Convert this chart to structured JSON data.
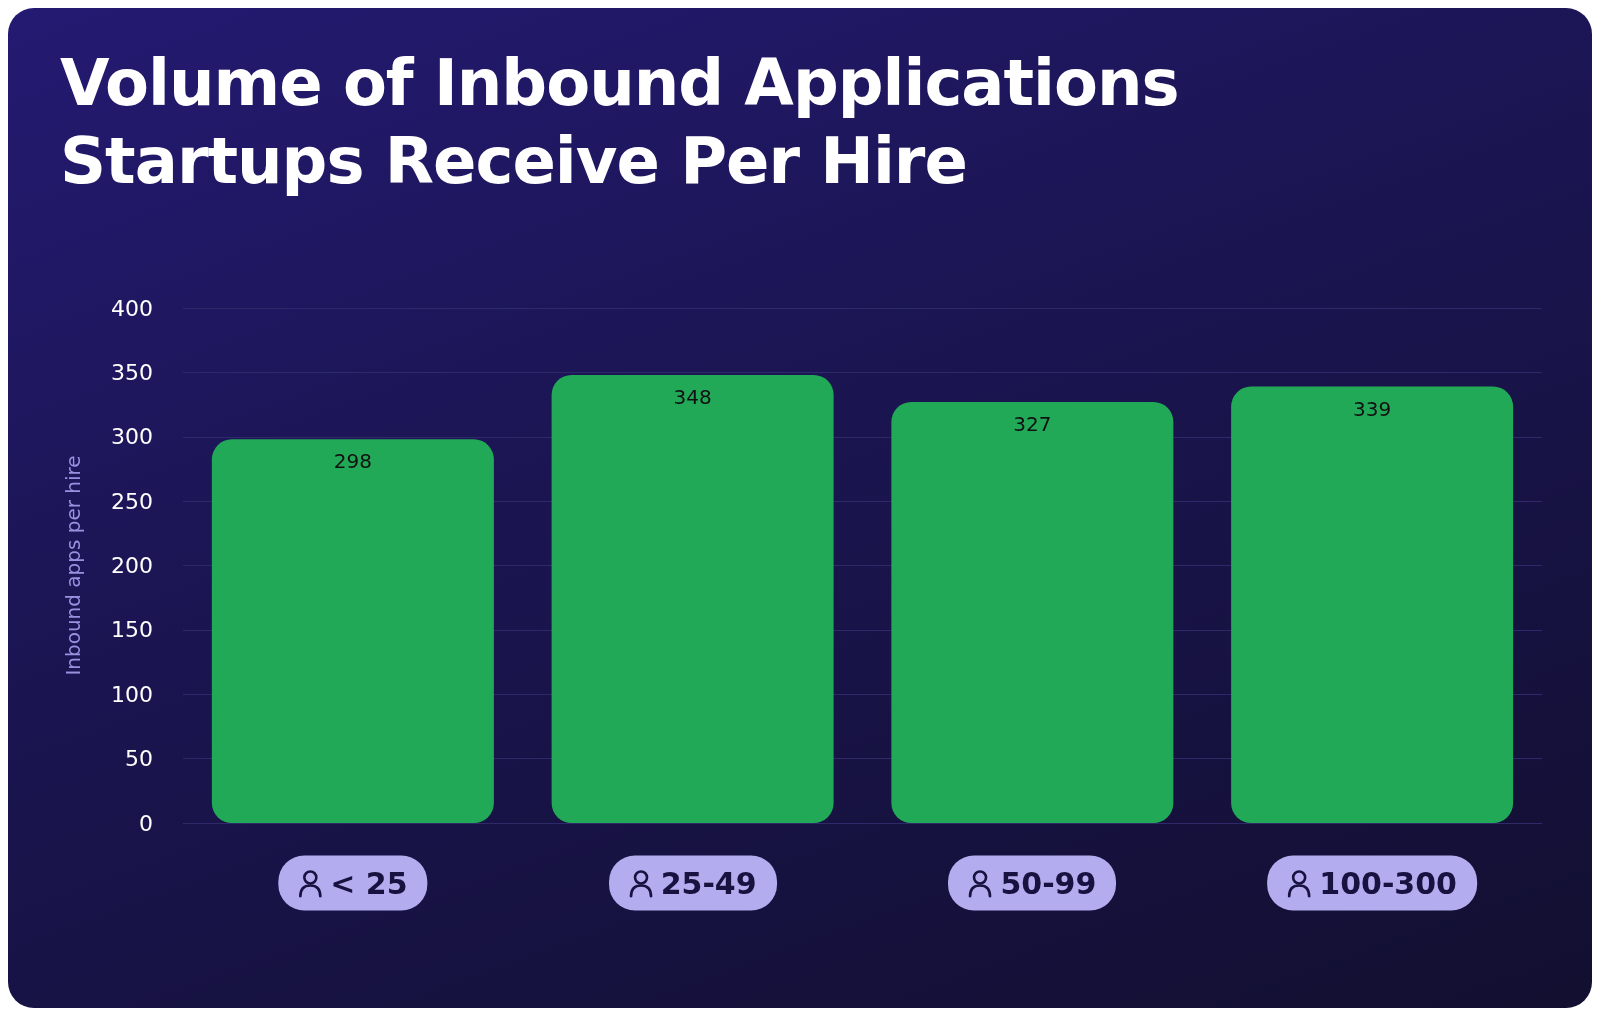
{
  "chart_data": {
    "type": "bar",
    "title": "Volume of Inbound Applications Startups Receive Per Hire",
    "ylabel": "Inbound apps per hire",
    "categories": [
      "< 25",
      "25-49",
      "50-99",
      "100-300"
    ],
    "values": [
      298,
      348,
      327,
      339
    ],
    "color": "#22a957",
    "ylim": [
      0,
      400
    ],
    "yticks": [
      0,
      50,
      100,
      150,
      200,
      250,
      300,
      350,
      400
    ],
    "grid": "y",
    "data_labels": true
  }
}
